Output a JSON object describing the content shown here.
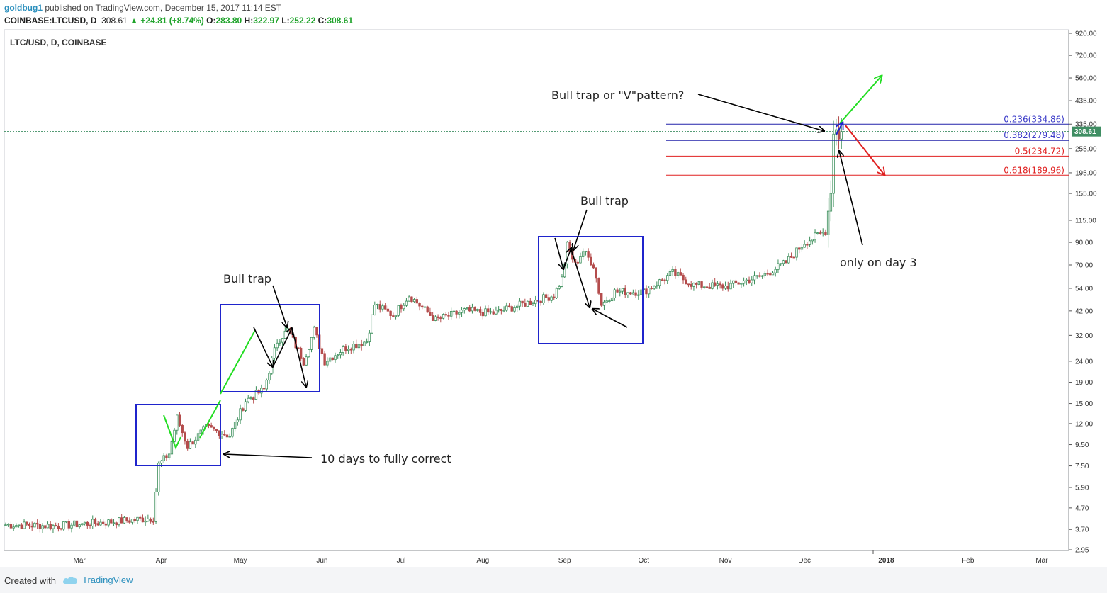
{
  "header": {
    "author": "goldbug1",
    "published_text": "published on TradingView.com, December 15, 2017 11:14 EST",
    "symbol": "COINBASE:LTCUSD, D",
    "last": "308.61",
    "change_arrow": "▲",
    "change": "+24.81 (+8.74%)",
    "o_label": "O:",
    "o_value": "283.80",
    "h_label": "H:",
    "h_value": "322.97",
    "l_label": "L:",
    "l_value": "252.22",
    "c_label": "C:",
    "c_value": "308.61"
  },
  "footer": {
    "created_with": "Created with",
    "brand": "TradingView",
    "icon": "tradingview-cloud-icon"
  },
  "colors": {
    "up_candle": "#3c8f5b",
    "down_candle": "#b44c4c",
    "box": "#1f24cc",
    "fib_blue": "#2222aa",
    "fib_red": "#e02020",
    "green_arrow": "#22dd22",
    "price_label_bg": "#3f8e63"
  },
  "chart_data": {
    "type": "candlestick",
    "title": "LTC/USD, D, COINBASE",
    "scale": "log",
    "ylim": [
      2.95,
      920
    ],
    "y_ticks": [
      "920.00",
      "720.00",
      "560.00",
      "435.00",
      "335.00",
      "255.00",
      "195.00",
      "155.00",
      "115.00",
      "90.00",
      "70.00",
      "54.00",
      "42.00",
      "32.00",
      "24.00",
      "19.00",
      "15.00",
      "12.00",
      "9.50",
      "7.50",
      "5.90",
      "4.70",
      "3.70",
      "2.95"
    ],
    "x_ticks": [
      "Mar",
      "Apr",
      "May",
      "Jun",
      "Jul",
      "Aug",
      "Sep",
      "Oct",
      "Nov",
      "Dec",
      "2018",
      "Feb",
      "Mar"
    ],
    "current_price": "308.61",
    "x_start_date": "2017-02-01",
    "close_path": [
      {
        "date": "2017-02-01",
        "close": 3.9
      },
      {
        "date": "2017-02-20",
        "close": 3.85
      },
      {
        "date": "2017-03-10",
        "close": 4.0
      },
      {
        "date": "2017-03-20",
        "close": 4.1
      },
      {
        "date": "2017-03-29",
        "close": 4.2
      },
      {
        "date": "2017-03-31",
        "close": 7.6
      },
      {
        "date": "2017-04-04",
        "close": 8.6
      },
      {
        "date": "2017-04-07",
        "close": 12.8
      },
      {
        "date": "2017-04-11",
        "close": 9.3
      },
      {
        "date": "2017-04-18",
        "close": 11.5
      },
      {
        "date": "2017-04-27",
        "close": 10.5
      },
      {
        "date": "2017-05-03",
        "close": 15.5
      },
      {
        "date": "2017-05-10",
        "close": 17.5
      },
      {
        "date": "2017-05-15",
        "close": 30
      },
      {
        "date": "2017-05-19",
        "close": 34
      },
      {
        "date": "2017-05-25",
        "close": 24
      },
      {
        "date": "2017-05-29",
        "close": 34
      },
      {
        "date": "2017-06-02",
        "close": 24
      },
      {
        "date": "2017-06-10",
        "close": 28
      },
      {
        "date": "2017-06-18",
        "close": 30
      },
      {
        "date": "2017-06-21",
        "close": 45
      },
      {
        "date": "2017-06-28",
        "close": 40
      },
      {
        "date": "2017-07-04",
        "close": 50
      },
      {
        "date": "2017-07-14",
        "close": 38
      },
      {
        "date": "2017-07-25",
        "close": 42
      },
      {
        "date": "2017-08-05",
        "close": 41
      },
      {
        "date": "2017-08-18",
        "close": 46
      },
      {
        "date": "2017-08-28",
        "close": 50
      },
      {
        "date": "2017-08-31",
        "close": 60
      },
      {
        "date": "2017-09-02",
        "close": 87
      },
      {
        "date": "2017-09-05",
        "close": 70
      },
      {
        "date": "2017-09-08",
        "close": 82
      },
      {
        "date": "2017-09-12",
        "close": 70
      },
      {
        "date": "2017-09-15",
        "close": 45
      },
      {
        "date": "2017-09-20",
        "close": 52
      },
      {
        "date": "2017-10-01",
        "close": 52
      },
      {
        "date": "2017-10-12",
        "close": 64
      },
      {
        "date": "2017-10-20",
        "close": 56
      },
      {
        "date": "2017-11-01",
        "close": 55
      },
      {
        "date": "2017-11-15",
        "close": 62
      },
      {
        "date": "2017-11-24",
        "close": 72
      },
      {
        "date": "2017-12-01",
        "close": 90
      },
      {
        "date": "2017-12-09",
        "close": 102
      },
      {
        "date": "2017-12-11",
        "close": 160
      },
      {
        "date": "2017-12-12",
        "close": 300
      },
      {
        "date": "2017-12-13",
        "close": 315
      },
      {
        "date": "2017-12-14",
        "close": 284
      },
      {
        "date": "2017-12-15",
        "close": 308.61
      }
    ],
    "fib_levels": [
      {
        "label": "0.236(334.86)",
        "value": 334.86,
        "color": "blue"
      },
      {
        "label": "0.382(279.48)",
        "value": 279.48,
        "color": "blue"
      },
      {
        "label": "0.5(234.72)",
        "value": 234.72,
        "color": "red"
      },
      {
        "label": "0.618(189.96)",
        "value": 189.96,
        "color": "red"
      }
    ],
    "annotations": [
      "10 days to fully correct",
      "Bull trap",
      "Bull trap",
      "Bull trap or \"V\"pattern?",
      "only on day 3"
    ]
  }
}
